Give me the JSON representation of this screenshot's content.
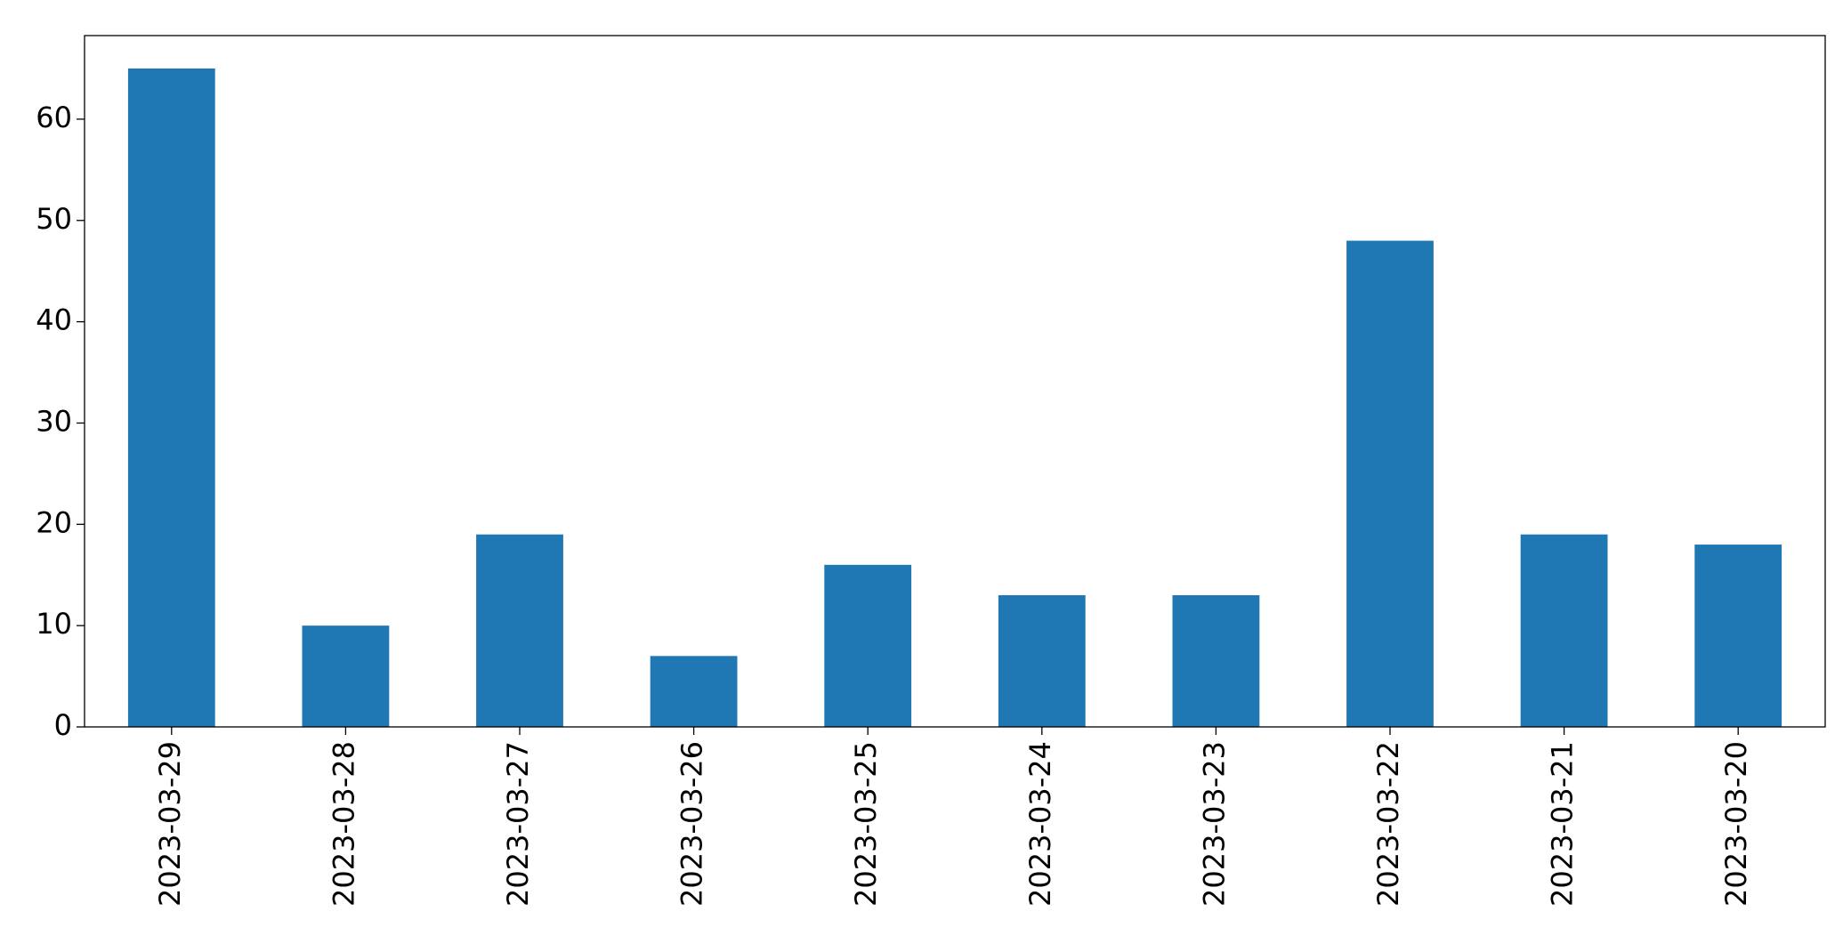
{
  "chart_data": {
    "type": "bar",
    "categories": [
      "2023-03-29",
      "2023-03-28",
      "2023-03-27",
      "2023-03-26",
      "2023-03-25",
      "2023-03-24",
      "2023-03-23",
      "2023-03-22",
      "2023-03-21",
      "2023-03-20"
    ],
    "values": [
      65,
      10,
      19,
      7,
      16,
      13,
      13,
      48,
      19,
      18
    ],
    "color": "#1f77b4",
    "ylim": [
      0,
      68.25
    ],
    "yticks": [
      0,
      10,
      20,
      30,
      40,
      50,
      60
    ],
    "grid": false
  }
}
